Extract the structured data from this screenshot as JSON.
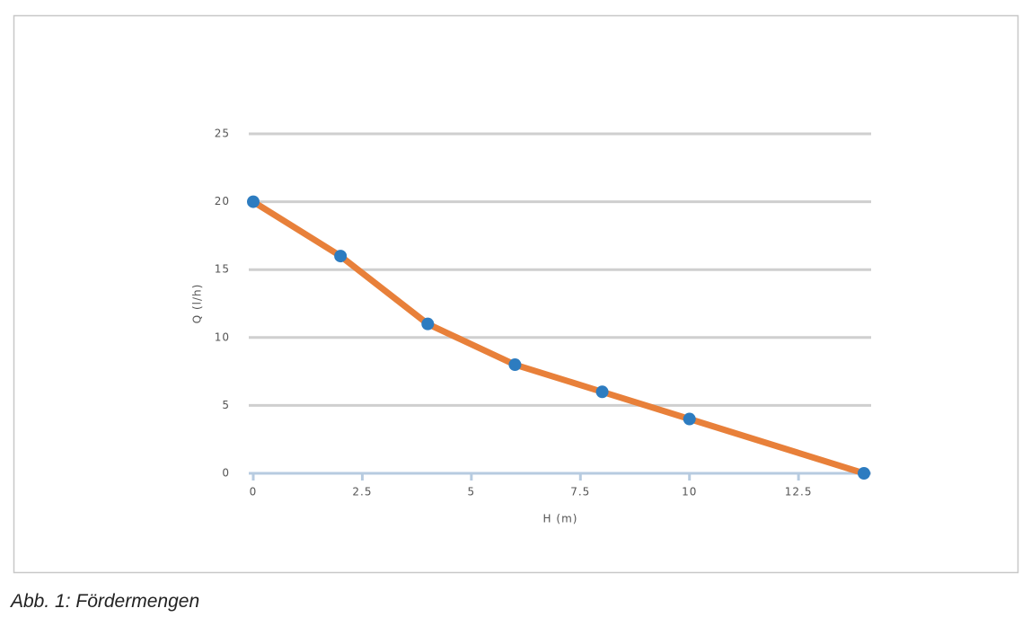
{
  "chart_data": {
    "type": "line",
    "x": [
      0,
      2,
      4,
      6,
      8,
      10,
      14
    ],
    "series": [
      {
        "color": "#e8803a",
        "marker_color": "#2d7cc0",
        "values": [
          20,
          16,
          11,
          8,
          6,
          4,
          0
        ]
      }
    ],
    "xlabel": "H (m)",
    "ylabel": "Q (l/h)",
    "xlim": [
      0,
      14
    ],
    "ylim": [
      0,
      25
    ],
    "xticks": [
      0,
      2.5,
      5,
      7.5,
      10,
      12.5
    ],
    "yticks": [
      0,
      5,
      10,
      15,
      20,
      25
    ],
    "grid": true
  },
  "caption": "Abb. 1: Fördermengen"
}
